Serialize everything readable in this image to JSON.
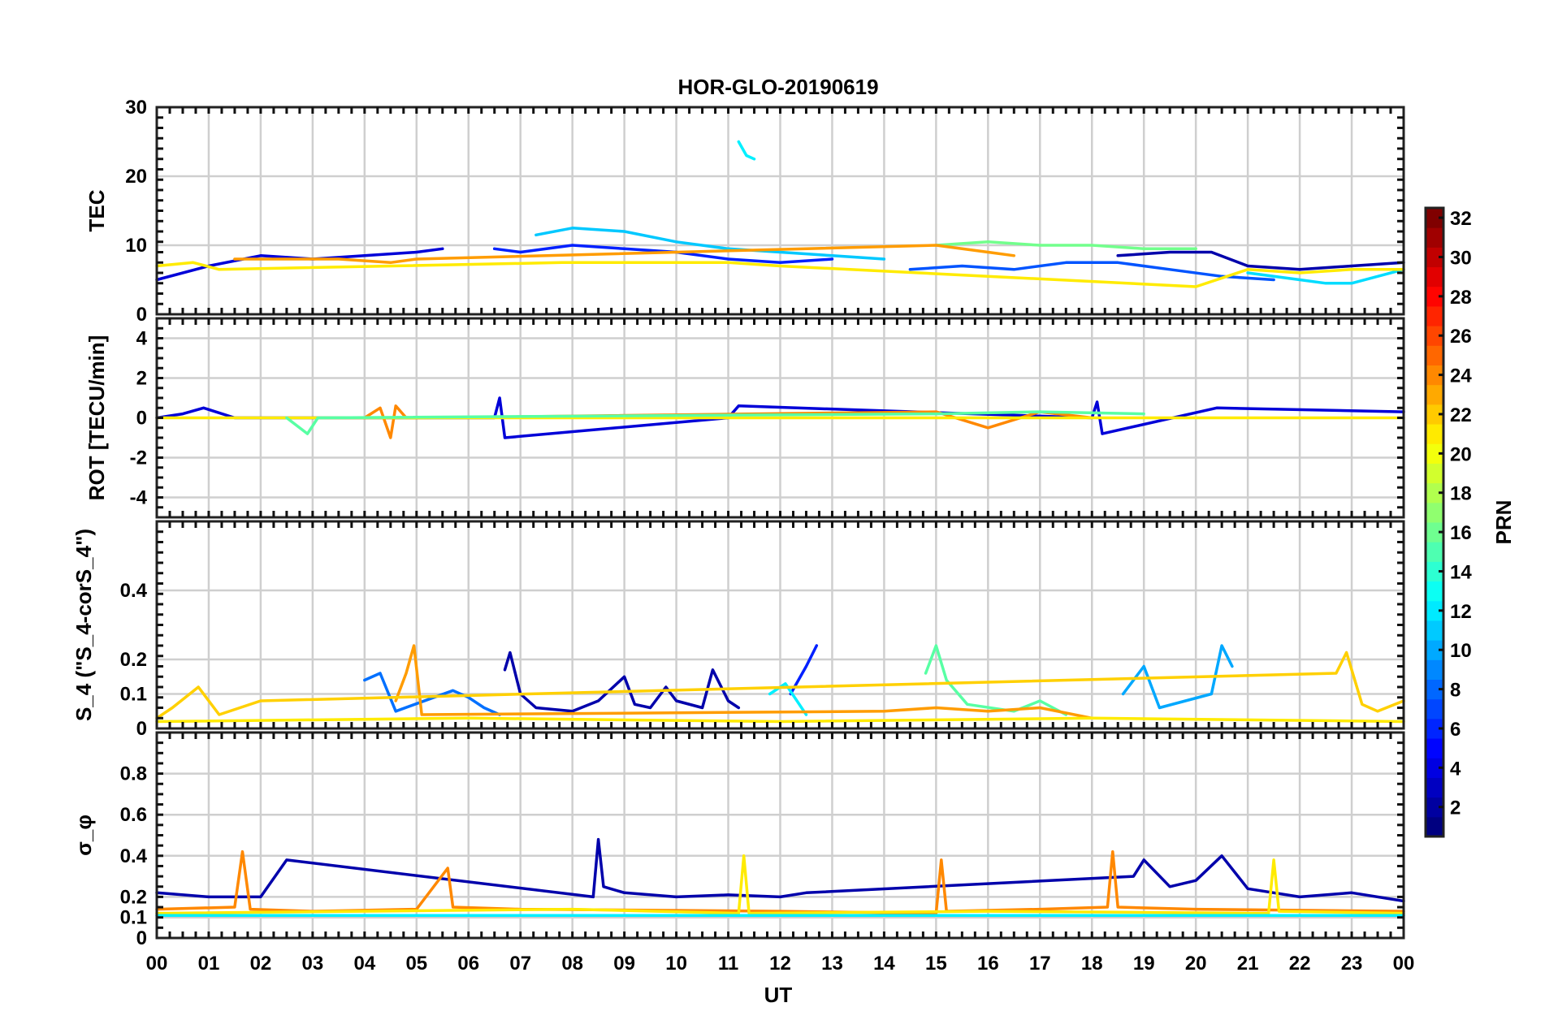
{
  "figure": {
    "title": "HOR-GLO-20190619",
    "xlabel": "UT",
    "x_tick_labels": [
      "00",
      "01",
      "02",
      "03",
      "04",
      "05",
      "06",
      "07",
      "08",
      "09",
      "10",
      "11",
      "12",
      "13",
      "14",
      "15",
      "16",
      "17",
      "18",
      "19",
      "20",
      "21",
      "22",
      "23",
      "00"
    ]
  },
  "colorbar": {
    "label": "PRN",
    "range": [
      1,
      32
    ],
    "tick_labels": [
      "2",
      "4",
      "6",
      "8",
      "10",
      "12",
      "14",
      "16",
      "18",
      "20",
      "22",
      "24",
      "26",
      "28",
      "30",
      "32"
    ],
    "colormap": "jet"
  },
  "chart_data": [
    {
      "type": "line",
      "name": "TEC",
      "ylabel": "TEC",
      "xlim": [
        0,
        24
      ],
      "ylim": [
        0,
        30
      ],
      "y_ticks": [
        0,
        10,
        20,
        30
      ],
      "y_tick_labels": [
        "0",
        "10",
        "20",
        "30"
      ],
      "x_unit": "hours UT",
      "series": [
        {
          "prn": 3,
          "color": "#0000d8",
          "x": [
            0.0,
            1.0,
            2.0,
            3.0,
            4.0,
            5.0,
            5.5
          ],
          "y": [
            5.0,
            7.0,
            8.5,
            8.0,
            8.5,
            9.0,
            9.5
          ]
        },
        {
          "prn": 5,
          "color": "#0020ff",
          "x": [
            6.5,
            7.0,
            8.0,
            9.0,
            10.0,
            11.0,
            12.0,
            13.0
          ],
          "y": [
            9.5,
            9.0,
            10.0,
            9.5,
            9.0,
            8.0,
            7.5,
            8.0
          ]
        },
        {
          "prn": 11,
          "color": "#00c8ff",
          "x": [
            7.3,
            8.0,
            9.0,
            10.0,
            11.0,
            12.0,
            13.0,
            14.0
          ],
          "y": [
            11.5,
            12.5,
            12.0,
            10.5,
            9.5,
            9.0,
            8.5,
            8.0
          ]
        },
        {
          "prn": 16,
          "color": "#72ff8c",
          "x": [
            15.0,
            16.0,
            17.0,
            18.0,
            19.0,
            20.0
          ],
          "y": [
            10.0,
            10.5,
            10.0,
            10.0,
            9.5,
            9.5
          ]
        },
        {
          "prn": 6,
          "color": "#0054ff",
          "x": [
            14.5,
            15.5,
            16.5,
            17.5,
            18.5,
            19.5,
            20.5,
            21.5
          ],
          "y": [
            6.5,
            7.0,
            6.5,
            7.5,
            7.5,
            6.5,
            5.5,
            5.0
          ]
        },
        {
          "prn": 2,
          "color": "#0000ab",
          "x": [
            18.5,
            19.5,
            20.3,
            21.0,
            22.0,
            23.0,
            24.0
          ],
          "y": [
            8.5,
            9.0,
            9.0,
            7.0,
            6.5,
            7.0,
            7.5
          ]
        },
        {
          "prn": 12,
          "color": "#00dcff",
          "x": [
            21.0,
            22.0,
            22.5,
            23.0,
            24.0
          ],
          "y": [
            6.0,
            5.0,
            4.5,
            4.5,
            6.5
          ]
        },
        {
          "prn": 23,
          "color": "#ff9c00",
          "x": [
            1.5,
            2.5,
            3.5,
            4.5,
            5.0,
            15.0,
            16.0,
            16.5
          ],
          "y": [
            8.0,
            8.0,
            8.0,
            7.5,
            8.0,
            10.0,
            9.0,
            8.5
          ]
        },
        {
          "prn": 20,
          "color": "#ffeb00",
          "x": [
            0.0,
            0.7,
            1.2,
            7.8,
            9.0,
            10.0,
            11.0,
            12.0,
            20.0,
            21.0,
            22.0,
            23.0,
            24.0
          ],
          "y": [
            7.0,
            7.5,
            6.5,
            7.5,
            7.5,
            7.5,
            7.5,
            7.0,
            4.0,
            6.5,
            6.0,
            6.5,
            6.5
          ]
        },
        {
          "prn": 13,
          "color": "#00f0ff",
          "x": [
            11.2,
            11.35,
            11.5
          ],
          "y": [
            25.0,
            23.0,
            22.5
          ]
        }
      ]
    },
    {
      "type": "line",
      "name": "ROT",
      "ylabel": "ROT [TECU/min]",
      "xlim": [
        0,
        24
      ],
      "ylim": [
        -5,
        5
      ],
      "y_ticks": [
        -4,
        -2,
        0,
        2,
        4
      ],
      "y_tick_labels": [
        "-4",
        "-2",
        "0",
        "2",
        "4"
      ],
      "x_unit": "hours UT",
      "series": [
        {
          "prn": 3,
          "color": "#0000d8",
          "x": [
            0.0,
            0.5,
            0.9,
            1.5,
            6.5,
            6.6,
            6.7,
            11.0,
            11.2,
            18.0,
            18.1,
            18.2,
            20.4,
            24.0
          ],
          "y": [
            0.0,
            0.2,
            0.5,
            0.0,
            0.0,
            1.0,
            -1.0,
            0.0,
            0.6,
            0.0,
            0.8,
            -0.8,
            0.5,
            0.3
          ]
        },
        {
          "prn": 23,
          "color": "#ff8800",
          "x": [
            4.0,
            4.3,
            4.5,
            4.6,
            4.8,
            5.0,
            15.0,
            16.0,
            17.0,
            18.0
          ],
          "y": [
            0.0,
            0.5,
            -1.0,
            0.6,
            0.0,
            0.0,
            0.3,
            -0.5,
            0.3,
            0.0
          ]
        },
        {
          "prn": 20,
          "color": "#ffeb00",
          "x": [
            0.0,
            12.0,
            24.0
          ],
          "y": [
            0.0,
            0.0,
            0.0
          ]
        },
        {
          "prn": 15,
          "color": "#58ffa4",
          "x": [
            2.5,
            2.9,
            3.1,
            15.0,
            17.0,
            19.0
          ],
          "y": [
            0.0,
            -0.8,
            0.0,
            0.2,
            0.3,
            0.2
          ]
        }
      ]
    },
    {
      "type": "line",
      "name": "S4",
      "ylabel": "S_4 (\"S_4-corS_4\")",
      "xlim": [
        0,
        24
      ],
      "ylim": [
        0,
        0.6
      ],
      "y_ticks": [
        0,
        0.1,
        0.2,
        0.4
      ],
      "y_tick_labels": [
        "0",
        "0.1",
        "0.2",
        "0.4"
      ],
      "x_unit": "hours UT",
      "series": [
        {
          "prn": 2,
          "color": "#0000ab",
          "x": [
            6.7,
            6.8,
            7.0,
            7.3,
            8.0,
            8.5,
            9.0,
            9.2,
            9.5,
            9.8,
            10.0,
            10.5,
            10.7,
            11.0,
            11.2
          ],
          "y": [
            0.17,
            0.22,
            0.1,
            0.06,
            0.05,
            0.08,
            0.15,
            0.07,
            0.06,
            0.12,
            0.08,
            0.06,
            0.17,
            0.08,
            0.06
          ]
        },
        {
          "prn": 5,
          "color": "#0020ff",
          "x": [
            12.2,
            12.5,
            12.7
          ],
          "y": [
            0.1,
            0.18,
            0.24
          ]
        },
        {
          "prn": 8,
          "color": "#0070ff",
          "x": [
            4.0,
            4.3,
            4.6,
            5.7,
            6.0,
            6.3,
            6.6
          ],
          "y": [
            0.14,
            0.16,
            0.05,
            0.11,
            0.09,
            0.06,
            0.04
          ]
        },
        {
          "prn": 10,
          "color": "#00a8ff",
          "x": [
            18.6,
            19.0,
            19.3,
            20.3,
            20.5,
            20.7
          ],
          "y": [
            0.1,
            0.18,
            0.06,
            0.1,
            0.24,
            0.18
          ]
        },
        {
          "prn": 15,
          "color": "#58ffa4",
          "x": [
            14.8,
            15.0,
            15.2,
            15.6,
            16.5,
            17.0,
            17.5
          ],
          "y": [
            0.16,
            0.24,
            0.14,
            0.07,
            0.05,
            0.08,
            0.04
          ]
        },
        {
          "prn": 13,
          "color": "#00f0ff",
          "x": [
            11.8,
            12.1,
            12.5
          ],
          "y": [
            0.1,
            0.13,
            0.04
          ]
        },
        {
          "prn": 23,
          "color": "#ff9c00",
          "x": [
            4.6,
            4.8,
            4.95,
            5.1,
            14.0,
            15.0,
            16.0,
            17.0,
            18.0
          ],
          "y": [
            0.08,
            0.16,
            0.24,
            0.04,
            0.05,
            0.06,
            0.05,
            0.06,
            0.03
          ]
        },
        {
          "prn": 21,
          "color": "#ffd000",
          "x": [
            0.0,
            0.3,
            0.8,
            1.2,
            2.0,
            22.7,
            22.9,
            23.2,
            23.5,
            24.0
          ],
          "y": [
            0.03,
            0.06,
            0.12,
            0.04,
            0.08,
            0.16,
            0.22,
            0.07,
            0.05,
            0.08
          ]
        },
        {
          "prn": 20,
          "color": "#ffeb00",
          "x": [
            0.0,
            6.0,
            12.0,
            18.0,
            24.0
          ],
          "y": [
            0.02,
            0.03,
            0.02,
            0.03,
            0.02
          ]
        }
      ]
    },
    {
      "type": "line",
      "name": "SigmaPhi",
      "ylabel": "σ_φ",
      "xlim": [
        0,
        24
      ],
      "ylim": [
        0,
        1
      ],
      "y_ticks": [
        0,
        0.1,
        0.2,
        0.4,
        0.6,
        0.8
      ],
      "y_tick_labels": [
        "0",
        "0.1",
        "0.2",
        "0.4",
        "0.6",
        "0.8"
      ],
      "x_unit": "hours UT",
      "series": [
        {
          "prn": 2,
          "color": "#0000ab",
          "x": [
            0.0,
            1.0,
            2.0,
            2.5,
            8.4,
            8.5,
            8.6,
            9.0,
            10.0,
            11.0,
            12.0,
            12.5,
            18.8,
            19.0,
            19.5,
            20.0,
            20.5,
            21.0,
            22.0,
            23.0,
            24.0
          ],
          "y": [
            0.22,
            0.2,
            0.2,
            0.38,
            0.2,
            0.48,
            0.25,
            0.22,
            0.2,
            0.21,
            0.2,
            0.22,
            0.3,
            0.38,
            0.25,
            0.28,
            0.4,
            0.24,
            0.2,
            0.22,
            0.18
          ]
        },
        {
          "prn": 23,
          "color": "#ff8800",
          "x": [
            0.0,
            1.5,
            1.65,
            1.8,
            3.0,
            5.0,
            5.6,
            5.7,
            7.0,
            12.0,
            15.0,
            15.1,
            15.2,
            17.0,
            18.3,
            18.4,
            18.5,
            20.0,
            24.0
          ],
          "y": [
            0.14,
            0.15,
            0.42,
            0.14,
            0.13,
            0.14,
            0.34,
            0.15,
            0.14,
            0.13,
            0.12,
            0.38,
            0.13,
            0.14,
            0.15,
            0.42,
            0.15,
            0.14,
            0.13
          ]
        },
        {
          "prn": 20,
          "color": "#ffeb00",
          "x": [
            0.0,
            8.0,
            11.2,
            11.3,
            11.4,
            16.0,
            21.4,
            21.5,
            21.6,
            24.0
          ],
          "y": [
            0.12,
            0.14,
            0.12,
            0.4,
            0.12,
            0.13,
            0.12,
            0.38,
            0.13,
            0.12
          ]
        },
        {
          "prn": 13,
          "color": "#00f0ff",
          "x": [
            0.0,
            12.0,
            24.0
          ],
          "y": [
            0.11,
            0.11,
            0.11
          ]
        }
      ]
    }
  ]
}
